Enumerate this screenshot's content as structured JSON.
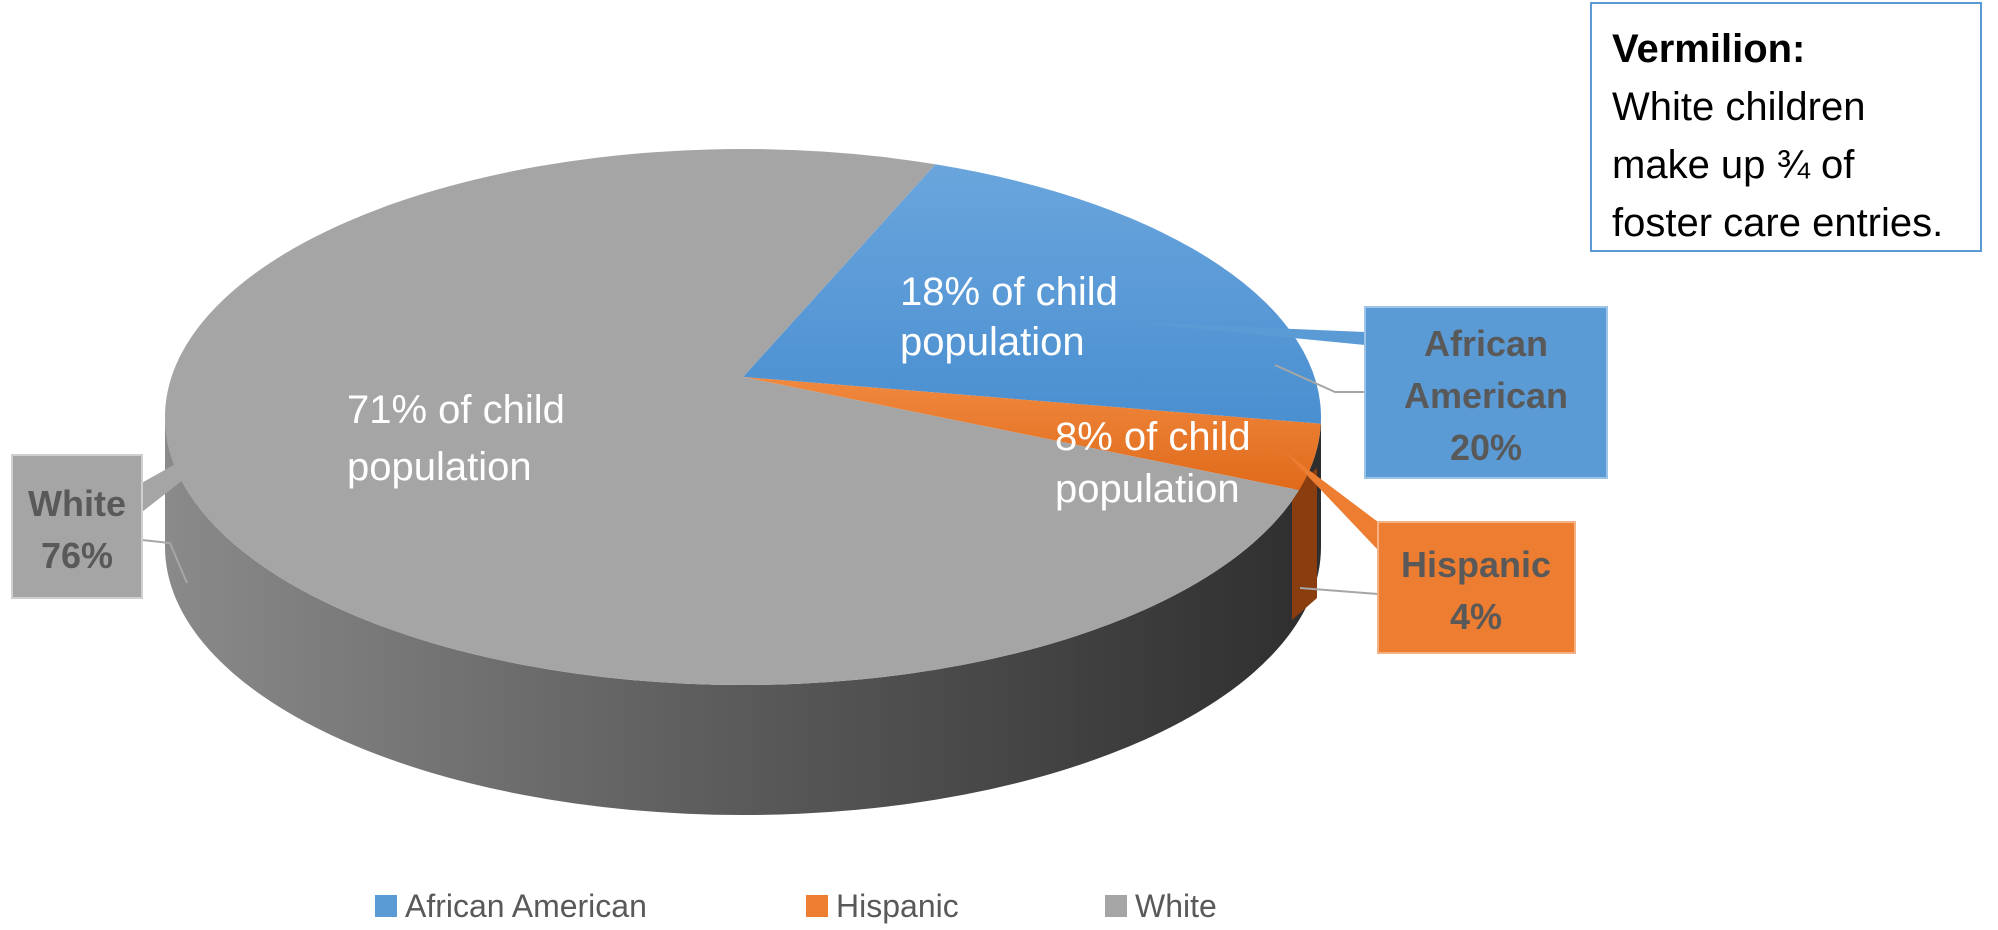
{
  "chart_data": {
    "type": "pie",
    "title": "",
    "slices": [
      {
        "name": "African American",
        "value": 20,
        "label": "20%",
        "slice_text": [
          "18% of child",
          "population"
        ],
        "color": "#5b9bd5"
      },
      {
        "name": "Hispanic",
        "value": 4,
        "label": "4%",
        "slice_text": [
          "8% of child",
          "population"
        ],
        "color": "#ed7d31"
      },
      {
        "name": "White",
        "value": 76,
        "label": "76%",
        "slice_text": [
          "71% of child",
          "population"
        ],
        "color": "#a5a5a5"
      }
    ],
    "callouts": [
      {
        "lines": [
          "African",
          "American",
          "20%"
        ]
      },
      {
        "lines": [
          "Hispanic",
          "4%"
        ]
      },
      {
        "lines": [
          "White",
          "76%"
        ]
      }
    ],
    "legend": {
      "position": "bottom",
      "entries": [
        "African American",
        "Hispanic",
        "White"
      ]
    }
  },
  "note": {
    "title": "Vermilion:",
    "lines": [
      "White children",
      "make up ¾ of",
      "foster care entries."
    ]
  }
}
